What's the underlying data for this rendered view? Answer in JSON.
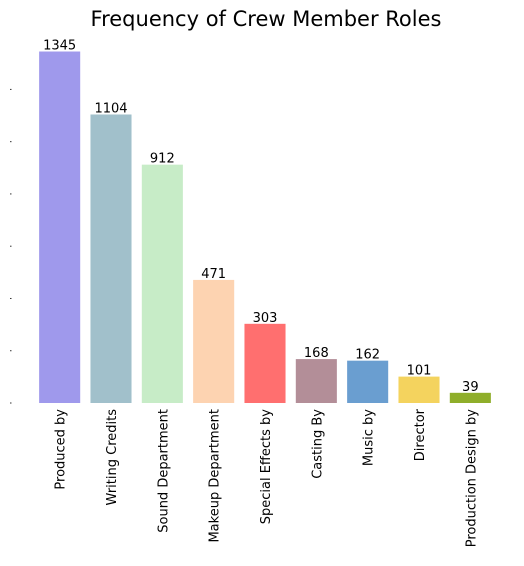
{
  "chart_data": {
    "type": "bar",
    "title": "Frequency of Crew Member Roles",
    "xlabel": "",
    "ylabel": "",
    "categories": [
      "Produced by",
      "Writing Credits",
      "Sound Department",
      "Makeup Department",
      "Special Effects by",
      "Casting By",
      "Music by",
      "Director",
      "Production Design by"
    ],
    "values": [
      1345,
      1104,
      912,
      471,
      303,
      168,
      162,
      101,
      39
    ],
    "colors": [
      "#9f99ec",
      "#a1c0cb",
      "#c7ecc7",
      "#fdd3b1",
      "#ff6f6f",
      "#b38e98",
      "#6a9ed0",
      "#f4d35e",
      "#8fae2a"
    ],
    "ylim": [
      0,
      1412
    ],
    "grid": false,
    "legend": "none"
  }
}
